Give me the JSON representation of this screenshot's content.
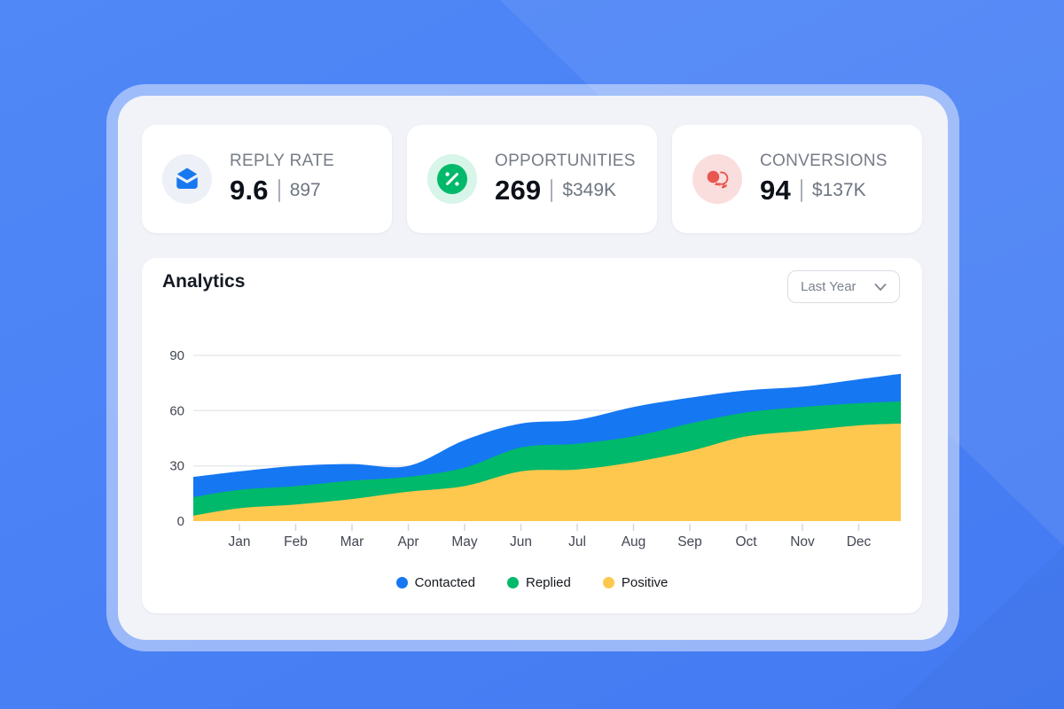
{
  "page": {
    "background_color": "#4a81f5",
    "frame_color": "#a6bef8",
    "panel_color": "#f1f3f8"
  },
  "stats": {
    "cards": [
      {
        "id": "reply-rate",
        "label": "REPLY RATE",
        "value": "9.6",
        "divider": "|",
        "secondary": "897",
        "icon": "envelope-icon",
        "icon_color": "#1778f0",
        "icon_bg": "#edf0f6"
      },
      {
        "id": "opportunities",
        "label": "OPPORTUNITIES",
        "value": "269",
        "divider": "|",
        "secondary": "$349K",
        "icon": "percent-icon",
        "icon_color": "#00b96a",
        "icon_bg": "#d7f5e8"
      },
      {
        "id": "conversions",
        "label": "CONVERSIONS",
        "value": "94",
        "divider": "|",
        "secondary": "$137K",
        "icon": "chat-bubbles-icon",
        "icon_color": "#e85750",
        "icon_bg": "#fadedd"
      }
    ]
  },
  "analytics": {
    "title": "Analytics",
    "range_selector": {
      "value": "Last Year",
      "icon": "chevron-down-icon"
    }
  },
  "chart_data": {
    "type": "area",
    "title": "Analytics",
    "overlapping": true,
    "x": [
      "Jan",
      "Feb",
      "Mar",
      "Apr",
      "May",
      "Jun",
      "Jul",
      "Aug",
      "Sep",
      "Oct",
      "Nov",
      "Dec"
    ],
    "series": [
      {
        "name": "Contacted",
        "color": "#1677f2",
        "edge_start": 24,
        "values": [
          27,
          30,
          31,
          30,
          44,
          53,
          55,
          62,
          67,
          71,
          73,
          77
        ],
        "edge_end": 80
      },
      {
        "name": "Replied",
        "color": "#00b96a",
        "edge_start": 13,
        "values": [
          17,
          19,
          22,
          24,
          29,
          40,
          42,
          46,
          53,
          59,
          62,
          64
        ],
        "edge_end": 65
      },
      {
        "name": "Positive",
        "color": "#fec84e",
        "edge_start": 3,
        "values": [
          7,
          9,
          12,
          16,
          19,
          27,
          28,
          32,
          38,
          46,
          49,
          52
        ],
        "edge_end": 53
      }
    ],
    "yticks": [
      0,
      30,
      60,
      90
    ],
    "ylim": [
      0,
      95
    ],
    "grid": "horizontal",
    "legend_position": "bottom",
    "axis_color": "#424752",
    "gridline_color": "#e8e9ed",
    "tick_color": "#d3d6db"
  }
}
